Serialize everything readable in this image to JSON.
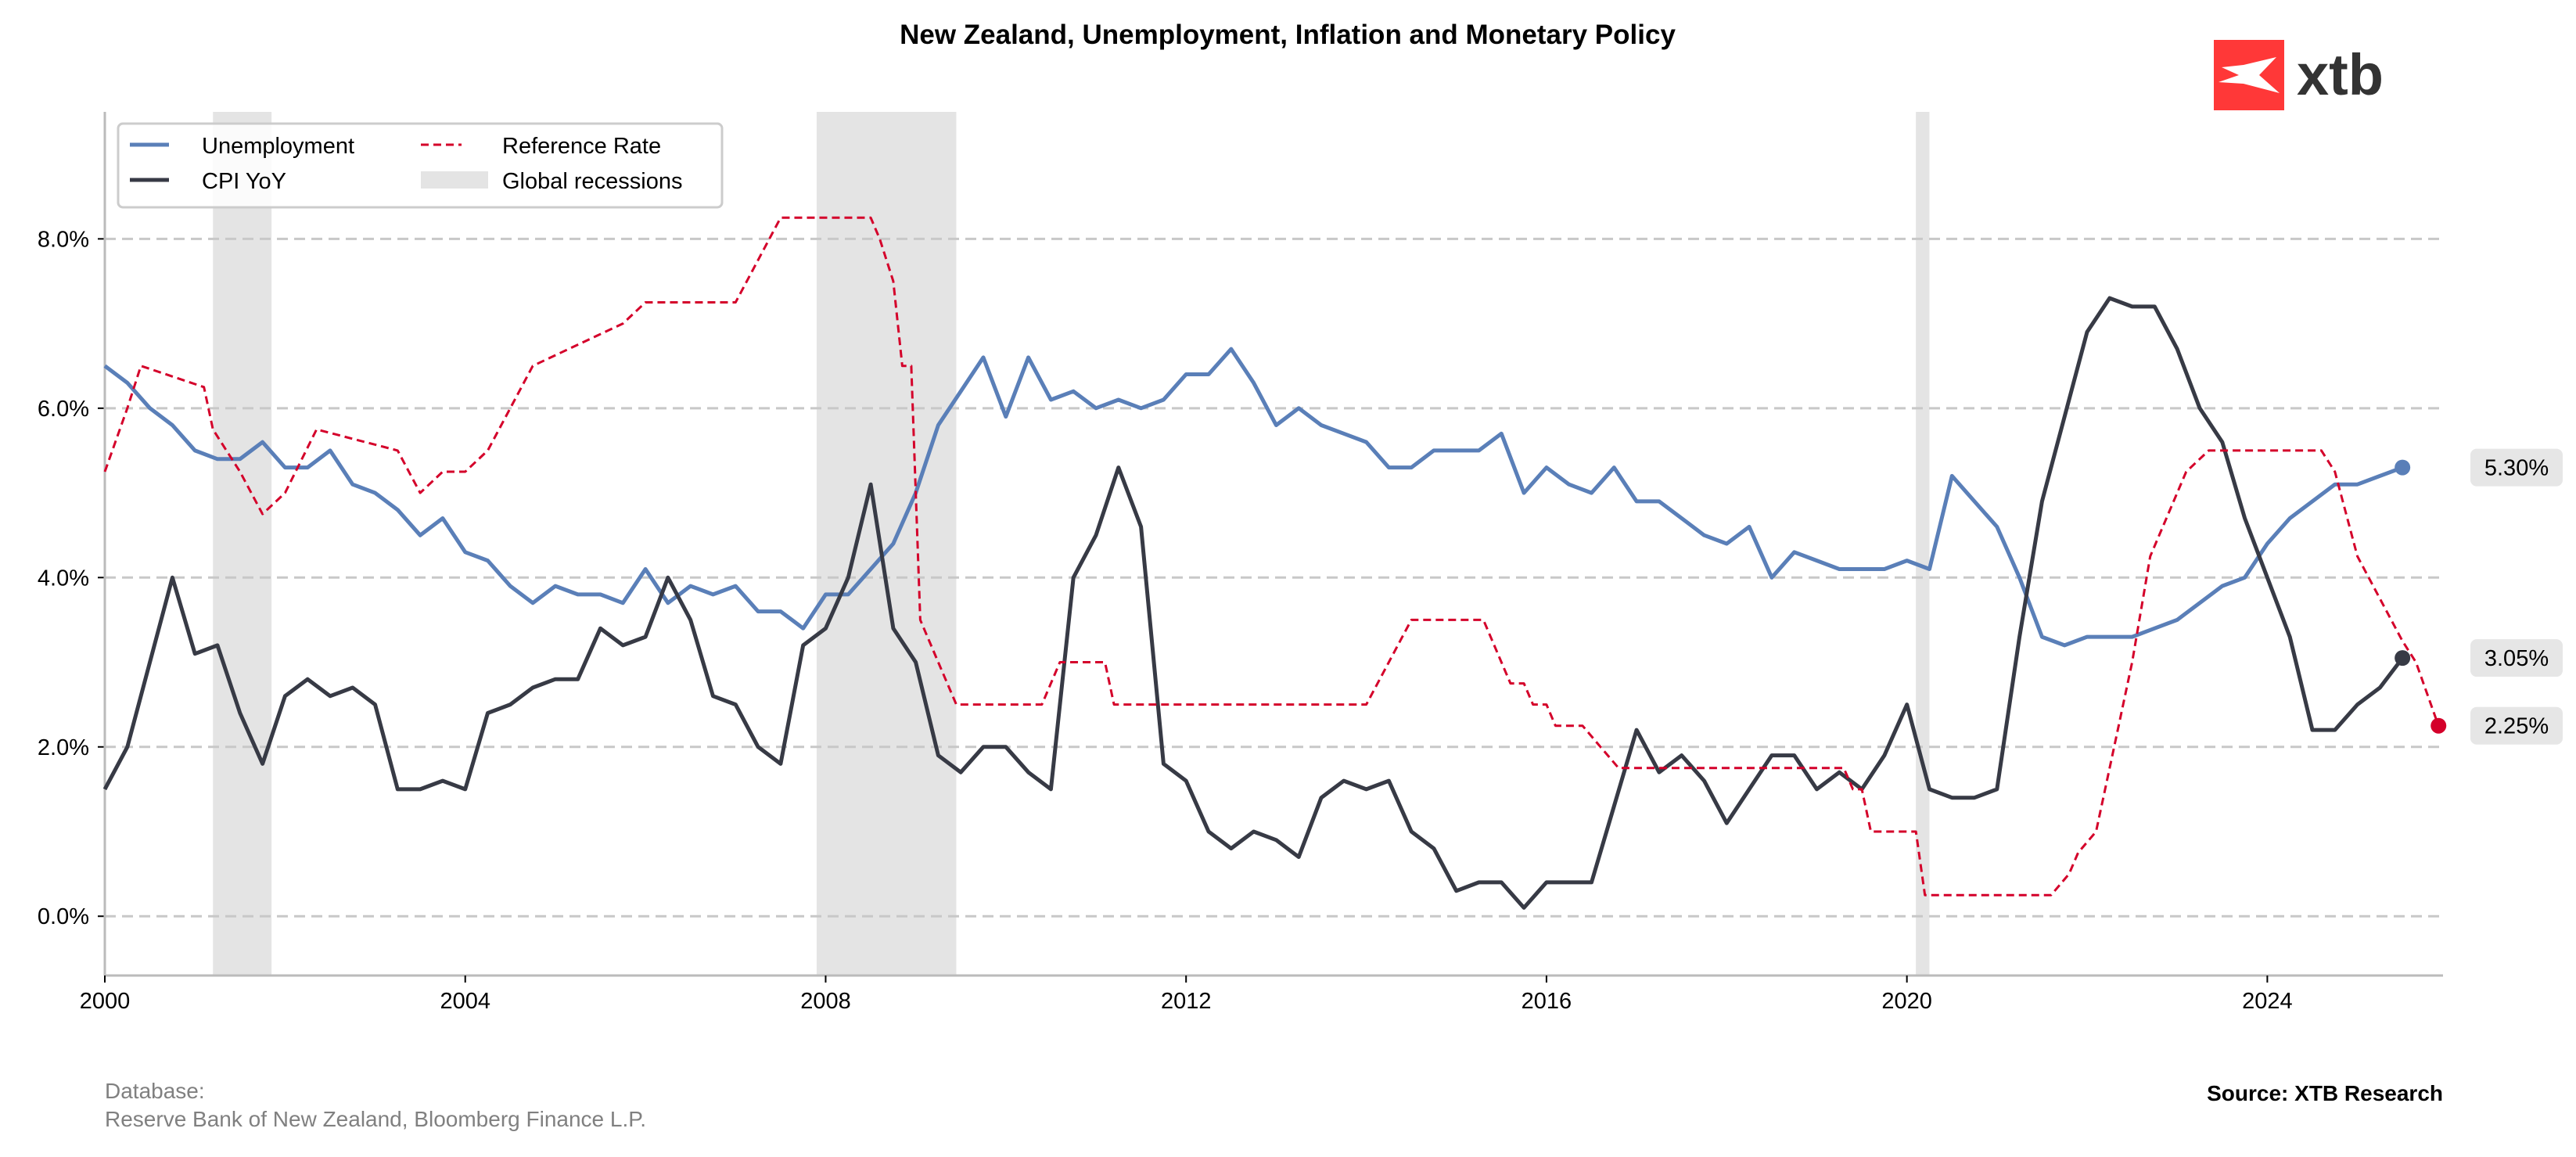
{
  "chart_data": {
    "type": "line",
    "title": "New Zealand, Unemployment, Inflation and Monetary Policy",
    "xlabel": "",
    "ylabel": "",
    "xlim": [
      2000,
      2025.95
    ],
    "ylim": [
      -0.7,
      9.5
    ],
    "x_ticks": [
      2000,
      2004,
      2008,
      2012,
      2016,
      2020,
      2024
    ],
    "x_tick_labels": [
      "2000",
      "2004",
      "2008",
      "2012",
      "2016",
      "2020",
      "2024"
    ],
    "y_ticks": [
      0,
      2,
      4,
      6,
      8
    ],
    "y_tick_labels": [
      "0.0%",
      "2.0%",
      "4.0%",
      "6.0%",
      "8.0%"
    ],
    "grid": "horizontal dashed",
    "legend_placement": "top-left",
    "legend": [
      "Unemployment",
      "CPI YoY",
      "Reference Rate",
      "Global recessions"
    ],
    "recessions": [
      [
        2001.2,
        2001.85
      ],
      [
        2007.9,
        2009.45
      ],
      [
        2020.1,
        2020.25
      ]
    ],
    "series": [
      {
        "name": "Unemployment",
        "color": "#5a7fb8",
        "style": "solid",
        "x_start": 2000.0,
        "x_step": 0.25,
        "values": [
          6.5,
          6.3,
          6.0,
          5.8,
          5.5,
          5.4,
          5.4,
          5.6,
          5.3,
          5.3,
          5.5,
          5.1,
          5.0,
          4.8,
          4.5,
          4.7,
          4.3,
          4.2,
          3.9,
          3.7,
          3.9,
          3.8,
          3.8,
          3.7,
          4.1,
          3.7,
          3.9,
          3.8,
          3.9,
          3.6,
          3.6,
          3.4,
          3.8,
          3.8,
          4.1,
          4.4,
          5.0,
          5.8,
          6.2,
          6.6,
          5.9,
          6.6,
          6.1,
          6.2,
          6.0,
          6.1,
          6.0,
          6.1,
          6.4,
          6.4,
          6.7,
          6.3,
          5.8,
          6.0,
          5.8,
          5.7,
          5.6,
          5.3,
          5.3,
          5.5,
          5.5,
          5.5,
          5.7,
          5.0,
          5.3,
          5.1,
          5.0,
          5.3,
          4.9,
          4.9,
          4.7,
          4.5,
          4.4,
          4.6,
          4.0,
          4.3,
          4.2,
          4.1,
          4.1,
          4.1,
          4.2,
          4.1,
          5.2,
          4.9,
          4.6,
          4.0,
          3.3,
          3.2,
          3.3,
          3.3,
          3.3,
          3.4,
          3.5,
          3.7,
          3.9,
          4.0,
          4.4,
          4.7,
          4.9,
          5.1,
          5.1,
          5.2,
          5.3
        ],
        "last_label": "5.30%"
      },
      {
        "name": "CPI YoY",
        "color": "#373a45",
        "style": "solid",
        "x_start": 2000.0,
        "x_step": 0.25,
        "values": [
          1.5,
          2.0,
          3.0,
          4.0,
          3.1,
          3.2,
          2.4,
          1.8,
          2.6,
          2.8,
          2.6,
          2.7,
          2.5,
          1.5,
          1.5,
          1.6,
          1.5,
          2.4,
          2.5,
          2.7,
          2.8,
          2.8,
          3.4,
          3.2,
          3.3,
          4.0,
          3.5,
          2.6,
          2.5,
          2.0,
          1.8,
          3.2,
          3.4,
          4.0,
          5.1,
          3.4,
          3.0,
          1.9,
          1.7,
          2.0,
          2.0,
          1.7,
          1.5,
          4.0,
          4.5,
          5.3,
          4.6,
          1.8,
          1.6,
          1.0,
          0.8,
          1.0,
          0.9,
          0.7,
          1.4,
          1.6,
          1.5,
          1.6,
          1.0,
          0.8,
          0.3,
          0.4,
          0.4,
          0.1,
          0.4,
          0.4,
          0.4,
          1.3,
          2.2,
          1.7,
          1.9,
          1.6,
          1.1,
          1.5,
          1.9,
          1.9,
          1.5,
          1.7,
          1.5,
          1.9,
          2.5,
          1.5,
          1.4,
          1.4,
          1.5,
          3.3,
          4.9,
          5.9,
          6.9,
          7.3,
          7.2,
          7.2,
          6.7,
          6.0,
          5.6,
          4.7,
          4.0,
          3.3,
          2.2,
          2.2,
          2.5,
          2.7,
          3.05
        ],
        "last_label": "3.05%"
      },
      {
        "name": "Reference Rate",
        "color": "#d4002a",
        "style": "dashed",
        "points": [
          [
            2000.0,
            5.25
          ],
          [
            2000.25,
            6.0
          ],
          [
            2000.4,
            6.5
          ],
          [
            2001.1,
            6.25
          ],
          [
            2001.2,
            5.75
          ],
          [
            2001.5,
            5.25
          ],
          [
            2001.75,
            4.75
          ],
          [
            2002.0,
            5.0
          ],
          [
            2002.35,
            5.75
          ],
          [
            2003.25,
            5.5
          ],
          [
            2003.5,
            5.0
          ],
          [
            2003.75,
            5.25
          ],
          [
            2004.0,
            5.25
          ],
          [
            2004.25,
            5.5
          ],
          [
            2004.5,
            6.0
          ],
          [
            2004.75,
            6.5
          ],
          [
            2005.25,
            6.75
          ],
          [
            2005.75,
            7.0
          ],
          [
            2006.0,
            7.25
          ],
          [
            2007.0,
            7.25
          ],
          [
            2007.25,
            7.75
          ],
          [
            2007.5,
            8.25
          ],
          [
            2008.5,
            8.25
          ],
          [
            2008.6,
            8.0
          ],
          [
            2008.75,
            7.5
          ],
          [
            2008.85,
            6.5
          ],
          [
            2008.95,
            6.5
          ],
          [
            2009.05,
            3.5
          ],
          [
            2009.25,
            3.0
          ],
          [
            2009.45,
            2.5
          ],
          [
            2010.4,
            2.5
          ],
          [
            2010.6,
            3.0
          ],
          [
            2011.1,
            3.0
          ],
          [
            2011.2,
            2.5
          ],
          [
            2014.0,
            2.5
          ],
          [
            2014.25,
            3.0
          ],
          [
            2014.5,
            3.5
          ],
          [
            2015.3,
            3.5
          ],
          [
            2015.5,
            3.0
          ],
          [
            2015.6,
            2.75
          ],
          [
            2015.75,
            2.75
          ],
          [
            2015.85,
            2.5
          ],
          [
            2016.0,
            2.5
          ],
          [
            2016.1,
            2.25
          ],
          [
            2016.4,
            2.25
          ],
          [
            2016.6,
            2.0
          ],
          [
            2016.8,
            1.75
          ],
          [
            2019.3,
            1.75
          ],
          [
            2019.4,
            1.5
          ],
          [
            2019.5,
            1.5
          ],
          [
            2019.6,
            1.0
          ],
          [
            2020.1,
            1.0
          ],
          [
            2020.2,
            0.25
          ],
          [
            2021.6,
            0.25
          ],
          [
            2021.8,
            0.5
          ],
          [
            2021.9,
            0.75
          ],
          [
            2022.1,
            1.0
          ],
          [
            2022.3,
            2.0
          ],
          [
            2022.5,
            3.0
          ],
          [
            2022.7,
            4.25
          ],
          [
            2022.9,
            4.75
          ],
          [
            2023.1,
            5.25
          ],
          [
            2023.35,
            5.5
          ],
          [
            2024.6,
            5.5
          ],
          [
            2024.75,
            5.25
          ],
          [
            2025.0,
            4.25
          ],
          [
            2025.25,
            3.75
          ],
          [
            2025.5,
            3.25
          ],
          [
            2025.65,
            3.0
          ],
          [
            2025.9,
            2.25
          ]
        ],
        "last_label": "2.25%"
      }
    ],
    "recession_color": "#e4e4e4",
    "grid_color": "#c8c8c8"
  },
  "footer": {
    "database_label": "Database:",
    "database_sources": "Reserve Bank of New Zealand, Bloomberg Finance L.P.",
    "source": "Source: XTB Research"
  },
  "logo": {
    "text": "xtb",
    "color": "#ff3838"
  }
}
